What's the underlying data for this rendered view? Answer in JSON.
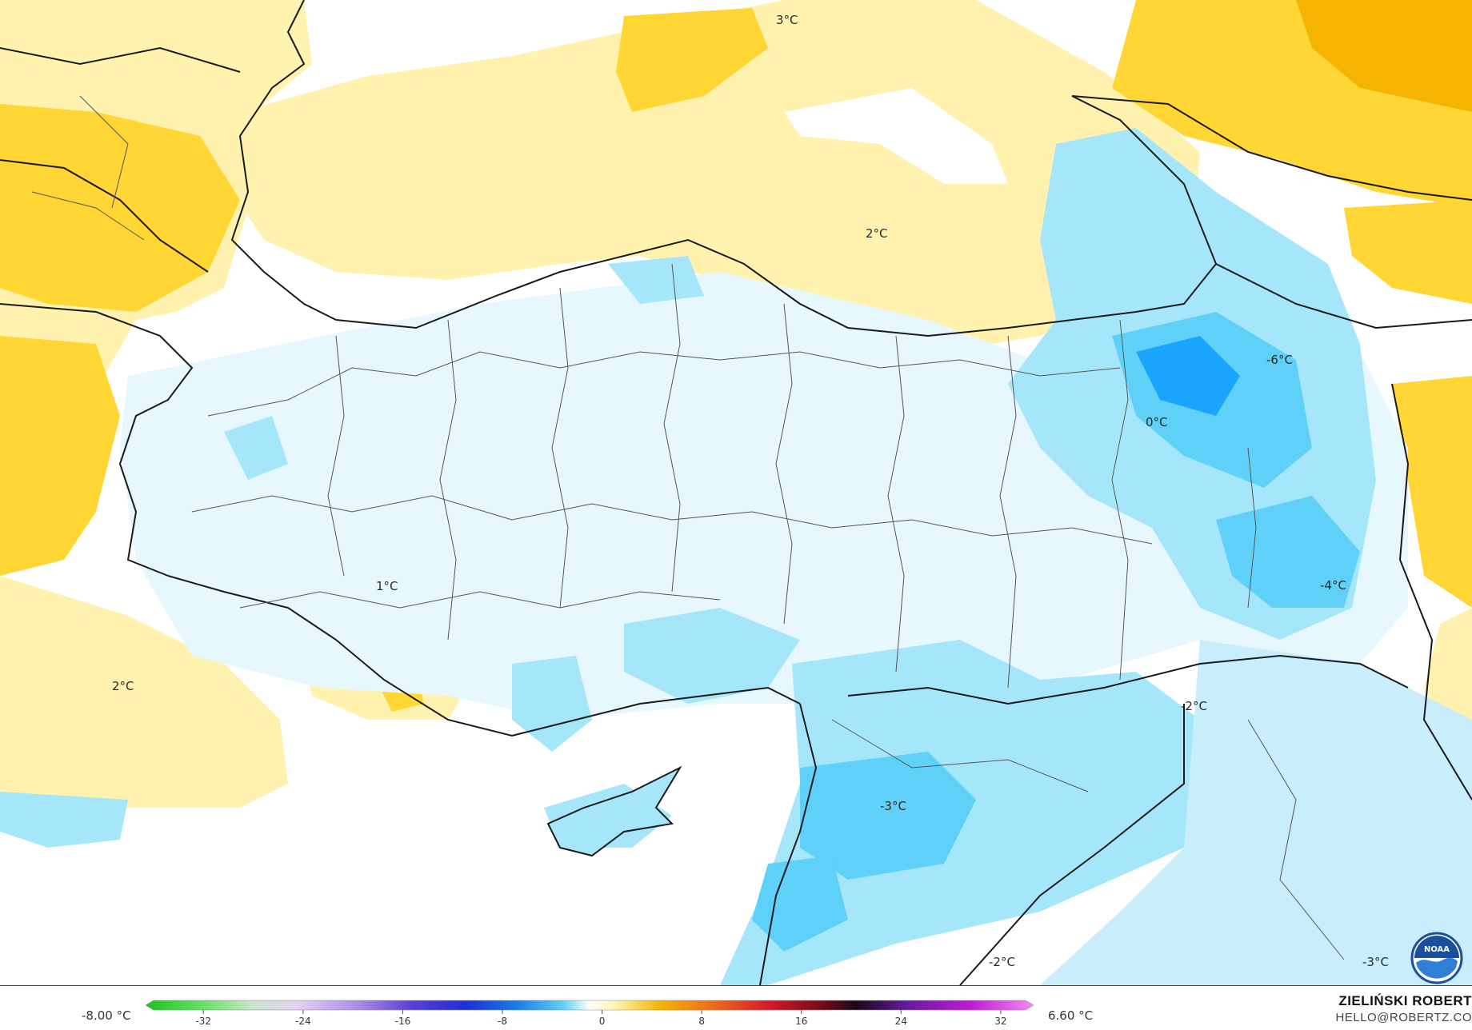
{
  "map": {
    "contour_labels": [
      "3°C",
      "2°C",
      "0°C",
      "-6°C",
      "1°C",
      "2°C",
      "-2°C",
      "-4°C",
      "-3°C",
      "-2°C",
      "-3°C"
    ]
  },
  "legend": {
    "min_label": "-8.00 °C",
    "max_label": "6.60 °C",
    "ticks": [
      "-32",
      "-24",
      "-16",
      "-8",
      "0",
      "8",
      "16",
      "24",
      "32"
    ],
    "tick_values": [
      -32,
      -24,
      -16,
      -8,
      0,
      8,
      16,
      24,
      32
    ],
    "range": [
      -36,
      34
    ],
    "colors": {
      "deep_cold": "#1aa3ff",
      "cold": "#a6e6fb",
      "cool": "#e6f7fd",
      "warm": "#fff2ae",
      "warmer": "#ffd633",
      "hot": "#f4b400",
      "sea": "#ffffff",
      "border": "#1a1a1a"
    }
  },
  "credit": {
    "name": "ZIELIŃSKI ROBERT",
    "email": "HELLO@ROBERTZ.CO"
  },
  "logo": {
    "text": "NOAA"
  }
}
